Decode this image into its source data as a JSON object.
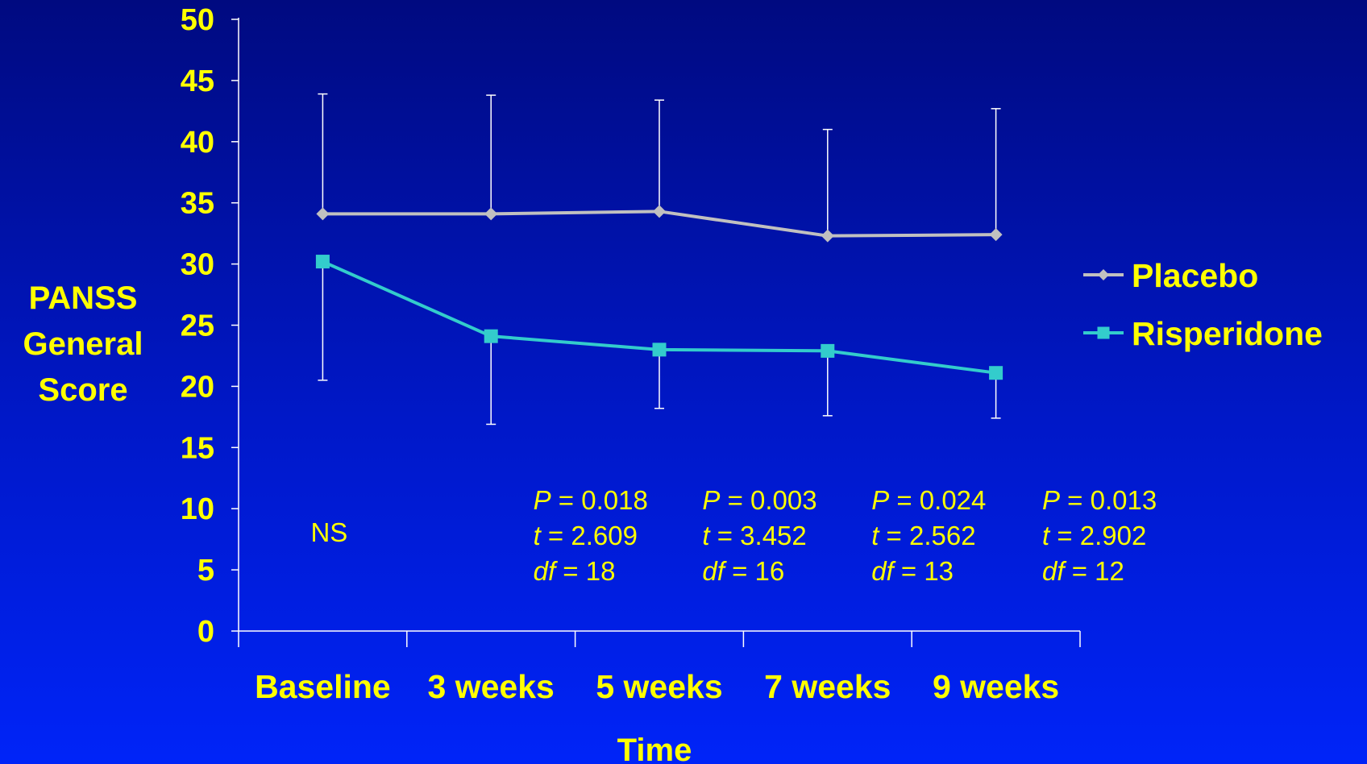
{
  "chart_data": {
    "type": "line",
    "title": "",
    "xlabel": "Time",
    "ylabel_lines": [
      "PANSS",
      "General",
      "Score"
    ],
    "categories": [
      "Baseline",
      "3 weeks",
      "5 weeks",
      "7 weeks",
      "9 weeks"
    ],
    "ylim": [
      0,
      50
    ],
    "yticks": [
      0,
      5,
      10,
      15,
      20,
      25,
      30,
      35,
      40,
      45,
      50
    ],
    "grid": false,
    "legend_position": "right",
    "series": [
      {
        "name": "Placebo",
        "color": "#c0c0c0",
        "marker": "diamond",
        "values": [
          34.1,
          34.1,
          34.3,
          32.3,
          32.4
        ],
        "error_upper": [
          43.9,
          43.8,
          43.4,
          41.0,
          42.7
        ],
        "error_direction": "up"
      },
      {
        "name": "Risperidone",
        "color": "#33cccc",
        "marker": "square",
        "values": [
          30.2,
          24.1,
          23.0,
          22.9,
          21.1
        ],
        "error_lower": [
          20.5,
          16.9,
          18.2,
          17.6,
          17.4
        ],
        "error_direction": "down"
      }
    ],
    "annotations": [
      {
        "category": "Baseline",
        "lines": [
          {
            "segments": [
              {
                "text": "NS",
                "italic": false
              }
            ]
          }
        ]
      },
      {
        "category": "3 weeks",
        "lines": [
          {
            "segments": [
              {
                "text": "P",
                "italic": true
              },
              {
                "text": " = 0.018",
                "italic": false
              }
            ]
          },
          {
            "segments": [
              {
                "text": "t",
                "italic": true
              },
              {
                "text": " = 2.609",
                "italic": false
              }
            ]
          },
          {
            "segments": [
              {
                "text": "df",
                "italic": true
              },
              {
                "text": " = 18",
                "italic": false
              }
            ]
          }
        ]
      },
      {
        "category": "5 weeks",
        "lines": [
          {
            "segments": [
              {
                "text": "P",
                "italic": true
              },
              {
                "text": " = 0.003",
                "italic": false
              }
            ]
          },
          {
            "segments": [
              {
                "text": "t",
                "italic": true
              },
              {
                "text": " = 3.452",
                "italic": false
              }
            ]
          },
          {
            "segments": [
              {
                "text": "df",
                "italic": true
              },
              {
                "text": " = 16",
                "italic": false
              }
            ]
          }
        ]
      },
      {
        "category": "7 weeks",
        "lines": [
          {
            "segments": [
              {
                "text": "P",
                "italic": true
              },
              {
                "text": " = 0.024",
                "italic": false
              }
            ]
          },
          {
            "segments": [
              {
                "text": "t",
                "italic": true
              },
              {
                "text": " = 2.562",
                "italic": false
              }
            ]
          },
          {
            "segments": [
              {
                "text": "df",
                "italic": true
              },
              {
                "text": " = 13",
                "italic": false
              }
            ]
          }
        ]
      },
      {
        "category": "9 weeks",
        "lines": [
          {
            "segments": [
              {
                "text": "P",
                "italic": true
              },
              {
                "text": " = 0.013",
                "italic": false
              }
            ]
          },
          {
            "segments": [
              {
                "text": "t",
                "italic": true
              },
              {
                "text": " = 2.902",
                "italic": false
              }
            ]
          },
          {
            "segments": [
              {
                "text": "df",
                "italic": true
              },
              {
                "text": " = 12",
                "italic": false
              }
            ]
          }
        ]
      }
    ]
  },
  "colors": {
    "text": "#ffff00",
    "axis": "#ffffff",
    "background_top": "#000a80",
    "background_bottom": "#0024f8"
  }
}
